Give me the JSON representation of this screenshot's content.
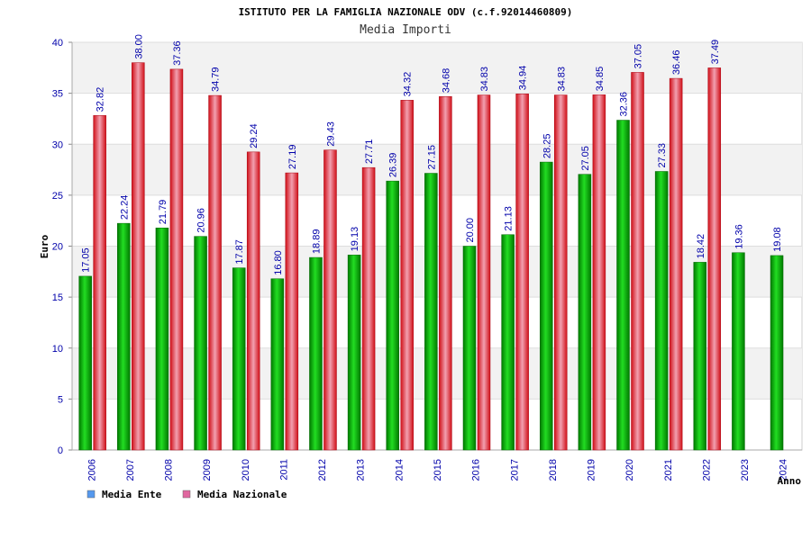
{
  "chart_data": {
    "type": "bar",
    "title": "ISTITUTO PER LA FAMIGLIA NAZIONALE ODV (c.f.92014460809)",
    "subtitle": "Media Importi",
    "xlabel": "Anno",
    "ylabel": "Euro",
    "ylim": [
      0,
      40
    ],
    "yticks": [
      "0",
      "5",
      "10",
      "15",
      "20",
      "25",
      "30",
      "35",
      "40"
    ],
    "categories": [
      "2006",
      "2007",
      "2008",
      "2009",
      "2010",
      "2011",
      "2012",
      "2013",
      "2014",
      "2015",
      "2016",
      "2017",
      "2018",
      "2019",
      "2020",
      "2021",
      "2022",
      "2023",
      "2024"
    ],
    "series": [
      {
        "name": "Media Ente",
        "color": "#00b000",
        "legend_color": "#5599ee",
        "values": [
          17.05,
          22.24,
          21.79,
          20.96,
          17.87,
          16.8,
          18.89,
          19.13,
          26.39,
          27.15,
          20.0,
          21.13,
          28.25,
          27.05,
          32.36,
          27.33,
          18.42,
          19.36,
          19.08
        ],
        "labels": [
          "17.05",
          "22.24",
          "21.79",
          "20.96",
          "17.87",
          "16.80",
          "18.89",
          "19.13",
          "26.39",
          "27.15",
          "20.00",
          "21.13",
          "28.25",
          "27.05",
          "32.36",
          "27.33",
          "18.42",
          "19.36",
          "19.08"
        ]
      },
      {
        "name": "Media Nazionale",
        "color": "#e8202a",
        "legend_color": "#e0679f",
        "values": [
          32.82,
          38.0,
          37.36,
          34.79,
          29.24,
          27.19,
          29.43,
          27.71,
          34.32,
          34.68,
          34.83,
          34.94,
          34.83,
          34.85,
          37.05,
          36.46,
          37.49,
          null,
          null
        ],
        "labels": [
          "32.82",
          "38.00",
          "37.36",
          "34.79",
          "29.24",
          "27.19",
          "29.43",
          "27.71",
          "34.32",
          "34.68",
          "34.83",
          "34.94",
          "34.83",
          "34.85",
          "37.05",
          "36.46",
          "37.49",
          null,
          null
        ]
      }
    ],
    "grid": true,
    "legend": "bottom-left"
  }
}
